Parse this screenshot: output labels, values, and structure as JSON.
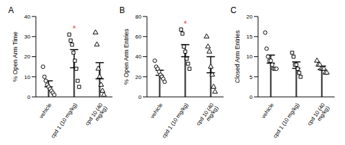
{
  "chart_data": [
    {
      "type": "bar",
      "title": "A",
      "ylabel": "% Open Arm Time",
      "categories": [
        "vehicle",
        "cpd 1 (10 mg/kg)",
        "cpd 10 (40 mg/kg)"
      ],
      "values": [
        6.5,
        19,
        13
      ],
      "errors": [
        1.5,
        4.5,
        4
      ],
      "points": [
        [
          15,
          10,
          8,
          6,
          5,
          4,
          3,
          2,
          1
        ],
        [
          31,
          28,
          26,
          22,
          18,
          14,
          8,
          5
        ],
        [
          32,
          26,
          14,
          10,
          6,
          3,
          1
        ]
      ],
      "color": "#000000",
      "ylim": [
        0,
        40
      ],
      "yticks": [
        0,
        10,
        20,
        30,
        40
      ],
      "annotations": [
        {
          "category": "cpd 1 (10 mg/kg)",
          "text": "*",
          "color": "#e8413a"
        }
      ]
    },
    {
      "type": "bar",
      "title": "B",
      "ylabel": "% Open Arm Entries",
      "categories": [
        "vehicle",
        "cpd 1 (10 mg/kg)",
        "cpd 10 (40 mg/kg)"
      ],
      "values": [
        24,
        46,
        32
      ],
      "errors": [
        2.5,
        6,
        8
      ],
      "points": [
        [
          36,
          30,
          28,
          25,
          22,
          20,
          18,
          15
        ],
        [
          67,
          63,
          50,
          45,
          38,
          33,
          28
        ],
        [
          60,
          50,
          45,
          30,
          22,
          10,
          5
        ]
      ],
      "color": "#000000",
      "ylim": [
        0,
        80
      ],
      "yticks": [
        0,
        20,
        40,
        60,
        80
      ],
      "annotations": [
        {
          "category": "cpd 1 (10 mg/kg)",
          "text": "*",
          "color": "#e8413a"
        }
      ]
    },
    {
      "type": "bar",
      "title": "C",
      "ylabel": "Closed Arm Entries",
      "categories": [
        "vehicle",
        "cpd 1 (10 mg/kg)",
        "cpd 10 (40 mg/kg)"
      ],
      "values": [
        9.4,
        7.9,
        7.25
      ],
      "errors": [
        1,
        0.8,
        0.4
      ],
      "points": [
        [
          16,
          12,
          10,
          9,
          9,
          8,
          7,
          7,
          7
        ],
        [
          11,
          10,
          8,
          8,
          7,
          6,
          5
        ],
        [
          9,
          8,
          8,
          7,
          7,
          7,
          6,
          6
        ]
      ],
      "color": "#000000",
      "ylim": [
        0,
        20
      ],
      "yticks": [
        0,
        5,
        10,
        15,
        20
      ],
      "annotations": []
    }
  ]
}
